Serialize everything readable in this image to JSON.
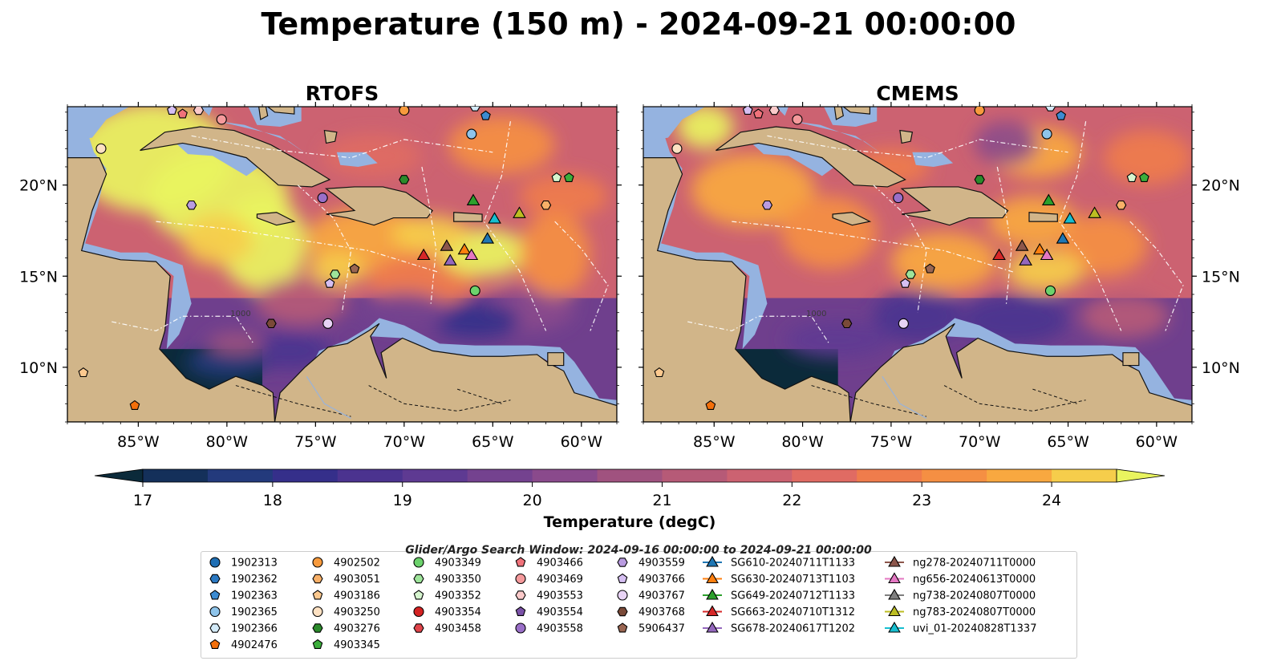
{
  "title": "Temperature (150 m) - 2024-09-21 00:00:00",
  "chart_data": {
    "type": "heatmap",
    "panels": [
      {
        "title": "RTOFS"
      },
      {
        "title": "CMEMS"
      }
    ],
    "x_ticks": [
      "85°W",
      "80°W",
      "75°W",
      "70°W",
      "65°W",
      "60°W"
    ],
    "x_tick_values": [
      -85,
      -80,
      -75,
      -70,
      -65,
      -60
    ],
    "y_ticks": [
      "20°N",
      "15°N",
      "10°N"
    ],
    "y_tick_values": [
      20,
      15,
      10
    ],
    "xlim": [
      -89,
      -58
    ],
    "ylim": [
      7,
      24.3
    ],
    "contour_labels": [
      "1000"
    ],
    "colorbar": {
      "label": "Temperature (degC)",
      "min": 17,
      "max": 24.5,
      "step": 0.5,
      "ticks": [
        "17",
        "18",
        "19",
        "20",
        "21",
        "22",
        "23",
        "24"
      ],
      "tick_values": [
        17,
        18,
        19,
        20,
        21,
        22,
        23,
        24
      ],
      "extend": "both",
      "colors": [
        "#0b2a3a",
        "#14305a",
        "#233a7c",
        "#352f8a",
        "#4b338f",
        "#5e3a92",
        "#74428f",
        "#8a4a8c",
        "#a0527f",
        "#b65a77",
        "#cc6271",
        "#e06b63",
        "#ef7c4c",
        "#f58f43",
        "#f8a840",
        "#f6cd4b",
        "#e9f45f"
      ]
    },
    "legend_subtitle": "Glider/Argo Search Window: 2024-09-16 00:00:00 to 2024-09-21 00:00:00",
    "legend_columns": [
      [
        {
          "label": "1902313",
          "marker": "circle",
          "color": "#1f6fb4"
        },
        {
          "label": "1902362",
          "marker": "hexagon",
          "color": "#2b79c2"
        },
        {
          "label": "1902363",
          "marker": "pentagon",
          "color": "#3c8bd1"
        },
        {
          "label": "1902365",
          "marker": "circle",
          "color": "#8ec4ea"
        },
        {
          "label": "1902366",
          "marker": "hexagon",
          "color": "#d3ebf9"
        },
        {
          "label": "4902476",
          "marker": "pentagon",
          "color": "#f36f0a"
        }
      ],
      [
        {
          "label": "4902502",
          "marker": "circle",
          "color": "#f79a3d"
        },
        {
          "label": "4903051",
          "marker": "hexagon",
          "color": "#f8b068"
        },
        {
          "label": "4903186",
          "marker": "pentagon",
          "color": "#fcc98f"
        },
        {
          "label": "4903250",
          "marker": "circle",
          "color": "#fde1c2"
        },
        {
          "label": "4903276",
          "marker": "hexagon",
          "color": "#2b8a2b"
        },
        {
          "label": "4903345",
          "marker": "pentagon",
          "color": "#3cae3c"
        }
      ],
      [
        {
          "label": "4903349",
          "marker": "circle",
          "color": "#6cd26c"
        },
        {
          "label": "4903350",
          "marker": "hexagon",
          "color": "#9ee49a"
        },
        {
          "label": "4903352",
          "marker": "pentagon",
          "color": "#d6f5cf"
        },
        {
          "label": "4903354",
          "marker": "circle",
          "color": "#d42222"
        },
        {
          "label": "4903458",
          "marker": "hexagon",
          "color": "#e0444a"
        }
      ],
      [
        {
          "label": "4903466",
          "marker": "pentagon",
          "color": "#f0727a"
        },
        {
          "label": "4903469",
          "marker": "circle",
          "color": "#f59a9c"
        },
        {
          "label": "4903553",
          "marker": "hexagon",
          "color": "#fbcaca"
        },
        {
          "label": "4903554",
          "marker": "pentagon",
          "color": "#7b52a8"
        },
        {
          "label": "4903558",
          "marker": "circle",
          "color": "#9a6fc8"
        }
      ],
      [
        {
          "label": "4903559",
          "marker": "hexagon",
          "color": "#b99be0"
        },
        {
          "label": "4903766",
          "marker": "pentagon",
          "color": "#d6bff2"
        },
        {
          "label": "4903767",
          "marker": "circle",
          "color": "#e8d3f5"
        },
        {
          "label": "4903768",
          "marker": "hexagon",
          "color": "#7a4a38"
        },
        {
          "label": "5906437",
          "marker": "pentagon",
          "color": "#9a6652"
        }
      ],
      [
        {
          "label": "SG610-20240711T1133",
          "marker": "triangle",
          "color": "#1f77b4"
        },
        {
          "label": "SG630-20240713T1103",
          "marker": "triangle",
          "color": "#ff7f0e"
        },
        {
          "label": "SG649-20240712T1133",
          "marker": "triangle",
          "color": "#2ca02c"
        },
        {
          "label": "SG663-20240710T1312",
          "marker": "triangle",
          "color": "#d62728"
        },
        {
          "label": "SG678-20240617T1202",
          "marker": "triangle",
          "color": "#9467bd"
        }
      ],
      [
        {
          "label": "ng278-20240711T0000",
          "marker": "triangle",
          "color": "#8c564b"
        },
        {
          "label": "ng656-20240613T0000",
          "marker": "triangle",
          "color": "#e377c2"
        },
        {
          "label": "ng738-20240807T0000",
          "marker": "triangle",
          "color": "#7f7f7f"
        },
        {
          "label": "ng783-20240807T0000",
          "marker": "triangle",
          "color": "#bcbd22"
        },
        {
          "label": "uvi_01-20240828T1337",
          "marker": "triangle",
          "color": "#17becf"
        }
      ]
    ],
    "glider_positions": [
      {
        "name": "SG610-20240711T1133",
        "lon": -65.3,
        "lat": 17.0
      },
      {
        "name": "SG630-20240713T1103",
        "lon": -66.6,
        "lat": 16.4
      },
      {
        "name": "SG649-20240712T1133",
        "lon": -66.1,
        "lat": 19.1
      },
      {
        "name": "SG663-20240710T1312",
        "lon": -68.9,
        "lat": 16.1
      },
      {
        "name": "SG678-20240617T1202",
        "lon": -67.4,
        "lat": 15.8
      },
      {
        "name": "ng278-20240711T0000",
        "lon": -67.6,
        "lat": 16.6
      },
      {
        "name": "ng656-20240613T0000",
        "lon": -66.2,
        "lat": 16.1
      },
      {
        "name": "ng783-20240807T0000",
        "lon": -63.5,
        "lat": 18.4
      },
      {
        "name": "uvi_01-20240828T1337",
        "lon": -64.9,
        "lat": 18.1
      }
    ],
    "float_positions": [
      {
        "name": "4902502",
        "lon": -70.0,
        "lat": 24.1
      },
      {
        "name": "1902365",
        "lon": -66.2,
        "lat": 22.8
      },
      {
        "name": "1902363",
        "lon": -65.4,
        "lat": 23.8
      },
      {
        "name": "1902366",
        "lon": -66.0,
        "lat": 24.3
      },
      {
        "name": "4903250",
        "lon": -87.1,
        "lat": 22.0
      },
      {
        "name": "4903469",
        "lon": -80.3,
        "lat": 23.6
      },
      {
        "name": "4903466",
        "lon": -82.5,
        "lat": 23.9
      },
      {
        "name": "4903553",
        "lon": -81.6,
        "lat": 24.1
      },
      {
        "name": "4903766",
        "lon": -83.1,
        "lat": 24.1
      },
      {
        "name": "4903276",
        "lon": -70.0,
        "lat": 20.3
      },
      {
        "name": "4903352",
        "lon": -61.4,
        "lat": 20.4
      },
      {
        "name": "4903345",
        "lon": -60.7,
        "lat": 20.4
      },
      {
        "name": "4903051",
        "lon": -62.0,
        "lat": 18.9
      },
      {
        "name": "4903558",
        "lon": -74.6,
        "lat": 19.3
      },
      {
        "name": "4903559",
        "lon": -82.0,
        "lat": 18.9
      },
      {
        "name": "4903350",
        "lon": -73.9,
        "lat": 15.1
      },
      {
        "name": "4903766",
        "lon": -74.2,
        "lat": 14.6
      },
      {
        "name": "5906437",
        "lon": -72.8,
        "lat": 15.4
      },
      {
        "name": "4903349",
        "lon": -66.0,
        "lat": 14.2
      },
      {
        "name": "4903768",
        "lon": -77.5,
        "lat": 12.4
      },
      {
        "name": "4903767",
        "lon": -74.3,
        "lat": 12.4
      },
      {
        "name": "4903186",
        "lon": -88.1,
        "lat": 9.7
      },
      {
        "name": "4902476",
        "lon": -85.2,
        "lat": 7.9
      }
    ]
  }
}
